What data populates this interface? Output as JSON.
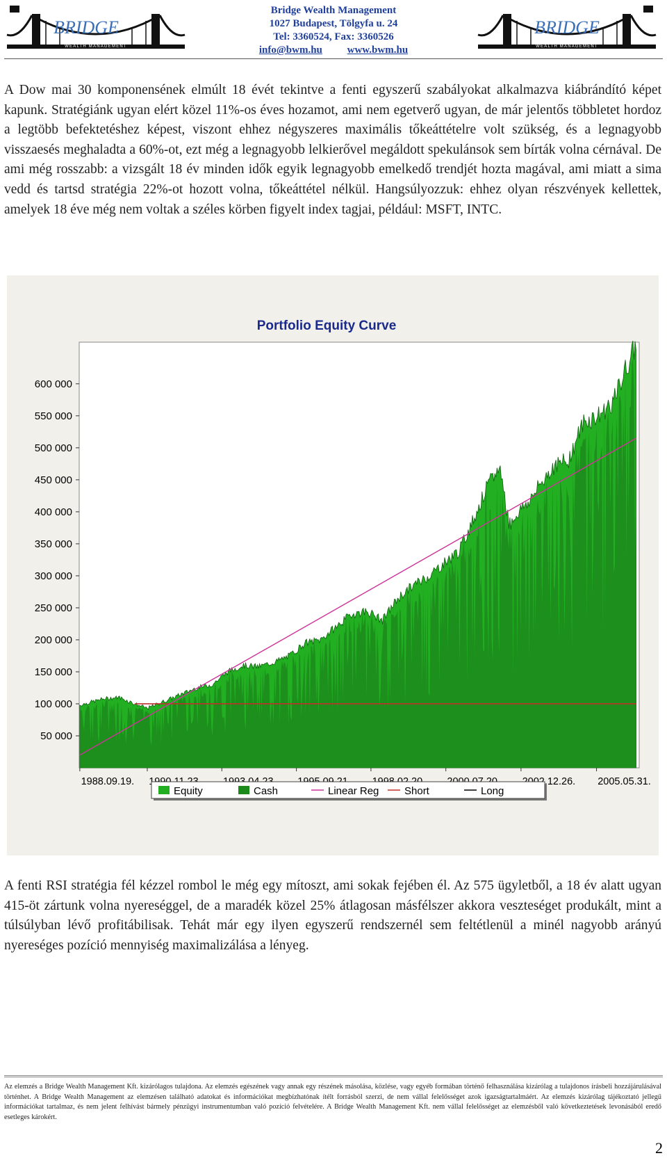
{
  "header": {
    "logo_text": "BRIDGE",
    "logo_subtext": "WEALTH MANAGEMENT",
    "company": "Bridge Wealth Management",
    "address": "1027 Budapest, Tölgyfa u. 24",
    "phone": "Tel: 3360524, Fax: 3360526",
    "email": "info@bwm.hu",
    "website": "www.bwm.hu"
  },
  "paragraph1": "A Dow mai 30 komponensének elmúlt 18 évét tekintve a fenti egyszerű szabályokat alkalmazva kiábrándító képet kapunk. Stratégiánk ugyan elért közel 11%-os éves hozamot, ami nem egetverő ugyan, de már jelentős többletet hordoz a legtöbb befektetéshez képest, viszont ehhez négyszeres maximális tőkeáttételre volt szükség, és a legnagyobb visszaesés meghaladta a 60%-ot, ezt még a legnagyobb lelkierővel megáldott spekulánsok sem bírták volna cérnával. De ami még rosszabb: a vizsgált 18 év minden idők egyik legnagyobb emelkedő trendjét hozta magával, ami miatt a sima vedd és tartsd stratégia 22%-ot hozott volna, tőkeáttétel nélkül. Hangsúlyozzuk: ehhez olyan részvények kellettek, amelyek 18 éve még nem voltak a széles körben figyelt index tagjai, például: MSFT, INTC.",
  "chart_data": {
    "type": "area",
    "title": "Portfolio Equity Curve",
    "xlabel": "",
    "ylabel": "",
    "x_ticks": [
      "1988.09.19.",
      "1990.11.23.",
      "1993.04.23.",
      "1995.09.21.",
      "1998.02.20.",
      "2000.07.20.",
      "2002.12.26.",
      "2005.05.31."
    ],
    "y_ticks": [
      "50 000",
      "100 000",
      "150 000",
      "200 000",
      "250 000",
      "300 000",
      "350 000",
      "400 000",
      "450 000",
      "500 000",
      "550 000",
      "600 000"
    ],
    "y_tick_values": [
      50000,
      100000,
      150000,
      200000,
      250000,
      300000,
      350000,
      400000,
      450000,
      500000,
      550000,
      600000
    ],
    "ylim": [
      0,
      665000
    ],
    "xlim": [
      1988.7,
      2006.8
    ],
    "legend": [
      "Equity",
      "Cash",
      "Linear Reg",
      "Short",
      "Long"
    ],
    "legend_position": "bottom",
    "grid": false,
    "colors": {
      "equity": "#22b022",
      "cash": "#1b8a1b",
      "linear_reg": "#cc3399",
      "short": "#c0302a",
      "long": "#000000",
      "plot_bg": "#ffffff",
      "panel_bg": "#f2f0ea",
      "title": "#1a2a8c"
    },
    "equity": {
      "x": [
        1988.72,
        1989.5,
        1990.0,
        1990.5,
        1990.9,
        1991.5,
        1992.0,
        1992.5,
        1993.0,
        1993.5,
        1994.0,
        1994.5,
        1995.0,
        1995.5,
        1996.0,
        1996.5,
        1997.0,
        1997.5,
        1998.0,
        1998.5,
        1999.0,
        1999.5,
        2000.0,
        2000.5,
        2001.0,
        2001.5,
        2001.9,
        2002.3,
        2002.6,
        2002.9,
        2003.3,
        2003.7,
        2004.0,
        2004.5,
        2005.0,
        2005.5,
        2006.0,
        2006.3,
        2006.7
      ],
      "y": [
        98000,
        108000,
        110000,
        100000,
        93000,
        105000,
        115000,
        125000,
        130000,
        150000,
        160000,
        158000,
        165000,
        175000,
        195000,
        200000,
        220000,
        240000,
        245000,
        230000,
        265000,
        285000,
        300000,
        320000,
        340000,
        395000,
        440000,
        470000,
        380000,
        400000,
        420000,
        450000,
        470000,
        480000,
        540000,
        550000,
        575000,
        615000,
        660000
      ]
    },
    "linear_reg": {
      "x": [
        1988.72,
        2006.7
      ],
      "y": [
        20000,
        515000
      ]
    },
    "short": {
      "x": [
        1990.5,
        2006.7
      ],
      "y": [
        100000,
        100000
      ]
    }
  },
  "paragraph2": "A fenti RSI stratégia fél kézzel rombol le még egy mítoszt, ami sokak fejében él. Az 575 ügyletből, a 18 év alatt ugyan 415-öt zártunk volna nyereséggel, de a maradék közel 25% átlagosan másfélszer akkora veszteséget produkált, mint a túlsúlyban lévő profitábilisak. Tehát már egy ilyen egyszerű rendszernél sem feltétlenül a minél nagyobb arányú nyereséges pozíció mennyiség maximalizálása a lényeg.",
  "footer": "Az elemzés a Bridge Wealth Management Kft. kizárólagos tulajdona. Az elemzés egészének vagy annak egy részének másolása, közlése, vagy egyéb formában történő felhasználása kizárólag a tulajdonos írásbeli hozzájárulásával történhet. A Bridge Wealth Management az elemzésen található adatokat és információkat megbízhatónak ítélt forrásból szerzi, de nem vállal felelősséget azok igazságtartalmáért. Az elemzés kizárólag tájékoztató jellegű információkat tartalmaz, és nem jelent felhívást bármely pénzügyi instrumentumban való pozíció felvételére. A Bridge Wealth Management Kft. nem vállal felelősséget az elemzésből való következtetések levonásából eredő esetleges károkért.",
  "page_number": "2"
}
